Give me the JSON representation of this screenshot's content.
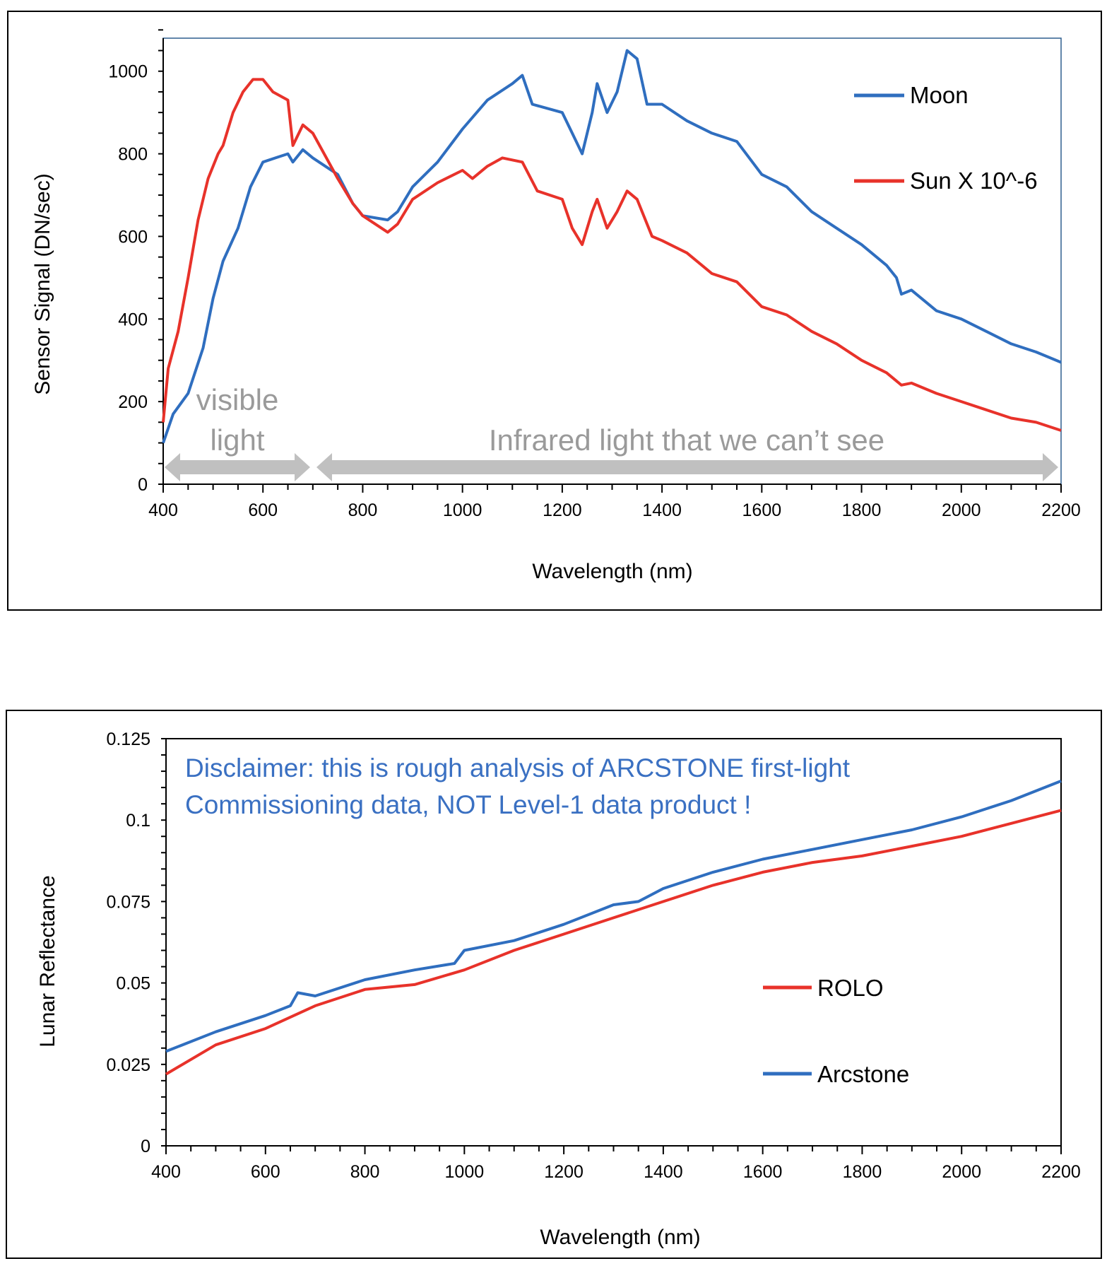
{
  "chart_data": [
    {
      "type": "line",
      "xlabel": "Wavelength (nm)",
      "ylabel": "Sensor Signal (DN/sec)",
      "xlim": [
        400,
        2200
      ],
      "ylim": [
        0,
        1080
      ],
      "xticks": [
        400,
        600,
        800,
        1000,
        1200,
        1400,
        1600,
        1800,
        2000,
        2200
      ],
      "yticks": [
        0,
        200,
        400,
        600,
        800,
        1000
      ],
      "grid": false,
      "legend_placement": "top-right",
      "annotations": {
        "visible_1": "visible",
        "visible_2": "light",
        "infrared": "Infrared light that we can’t see"
      },
      "series": [
        {
          "name": "Moon",
          "color": "#2f6ebf",
          "x": [
            400,
            420,
            450,
            480,
            500,
            520,
            550,
            575,
            600,
            625,
            650,
            660,
            680,
            700,
            750,
            780,
            800,
            850,
            870,
            900,
            950,
            1000,
            1050,
            1100,
            1120,
            1140,
            1200,
            1220,
            1240,
            1260,
            1270,
            1290,
            1310,
            1330,
            1350,
            1370,
            1400,
            1450,
            1500,
            1550,
            1600,
            1650,
            1700,
            1750,
            1800,
            1850,
            1870,
            1880,
            1900,
            1950,
            2000,
            2050,
            2100,
            2150,
            2200
          ],
          "y": [
            100,
            170,
            220,
            330,
            450,
            540,
            620,
            720,
            780,
            790,
            800,
            780,
            810,
            790,
            750,
            680,
            650,
            640,
            660,
            720,
            780,
            860,
            930,
            970,
            990,
            920,
            900,
            850,
            800,
            900,
            970,
            900,
            950,
            1050,
            1030,
            920,
            920,
            880,
            850,
            830,
            750,
            720,
            660,
            620,
            580,
            530,
            500,
            460,
            470,
            420,
            400,
            370,
            340,
            320,
            295
          ]
        },
        {
          "name": "Sun X 10^-6",
          "color": "#e8322a",
          "x": [
            400,
            410,
            430,
            450,
            470,
            490,
            510,
            520,
            540,
            560,
            580,
            600,
            620,
            650,
            660,
            680,
            700,
            750,
            780,
            800,
            850,
            870,
            900,
            950,
            1000,
            1020,
            1050,
            1080,
            1120,
            1150,
            1200,
            1220,
            1240,
            1260,
            1270,
            1290,
            1310,
            1330,
            1350,
            1380,
            1400,
            1450,
            1500,
            1550,
            1600,
            1650,
            1700,
            1750,
            1800,
            1850,
            1880,
            1900,
            1950,
            2000,
            2050,
            2100,
            2150,
            2200
          ],
          "y": [
            150,
            280,
            370,
            500,
            640,
            740,
            800,
            820,
            900,
            950,
            980,
            980,
            950,
            930,
            820,
            870,
            850,
            740,
            680,
            650,
            610,
            630,
            690,
            730,
            760,
            740,
            770,
            790,
            780,
            710,
            690,
            620,
            580,
            660,
            690,
            620,
            660,
            710,
            690,
            600,
            590,
            560,
            510,
            490,
            430,
            410,
            370,
            340,
            300,
            270,
            240,
            245,
            220,
            200,
            180,
            160,
            150,
            130
          ]
        }
      ]
    },
    {
      "type": "line",
      "xlabel": "Wavelength (nm)",
      "ylabel": "Lunar Reflectance",
      "xlim": [
        400,
        2200
      ],
      "ylim": [
        0,
        0.125
      ],
      "xticks": [
        400,
        600,
        800,
        1000,
        1200,
        1400,
        1600,
        1800,
        2000,
        2200
      ],
      "yticks": [
        0,
        0.025,
        0.05,
        0.075,
        0.1,
        0.125
      ],
      "ytick_labels": [
        "0",
        "0.025",
        "0.05",
        "0.075",
        "0.1",
        "0.125"
      ],
      "grid": false,
      "legend_placement": "center-right",
      "annotations": {
        "disclaimer_1": "Disclaimer: this is rough analysis of ARCSTONE first-light",
        "disclaimer_2": "Commissioning data, NOT Level-1 data product !"
      },
      "series": [
        {
          "name": "ROLO",
          "color": "#e8322a",
          "x": [
            400,
            500,
            600,
            700,
            800,
            900,
            1000,
            1100,
            1200,
            1300,
            1400,
            1500,
            1600,
            1700,
            1800,
            1900,
            2000,
            2100,
            2200
          ],
          "y": [
            0.022,
            0.031,
            0.036,
            0.043,
            0.048,
            0.0495,
            0.054,
            0.06,
            0.065,
            0.07,
            0.075,
            0.08,
            0.084,
            0.087,
            0.089,
            0.092,
            0.095,
            0.099,
            0.103
          ]
        },
        {
          "name": "Arcstone",
          "color": "#2f6ebf",
          "x": [
            400,
            500,
            600,
            650,
            665,
            700,
            800,
            900,
            980,
            1000,
            1100,
            1200,
            1300,
            1350,
            1400,
            1500,
            1600,
            1700,
            1800,
            1900,
            2000,
            2100,
            2200
          ],
          "y": [
            0.029,
            0.035,
            0.04,
            0.043,
            0.047,
            0.046,
            0.051,
            0.054,
            0.056,
            0.06,
            0.063,
            0.068,
            0.074,
            0.075,
            0.079,
            0.084,
            0.088,
            0.091,
            0.094,
            0.097,
            0.101,
            0.106,
            0.112
          ]
        }
      ]
    }
  ]
}
